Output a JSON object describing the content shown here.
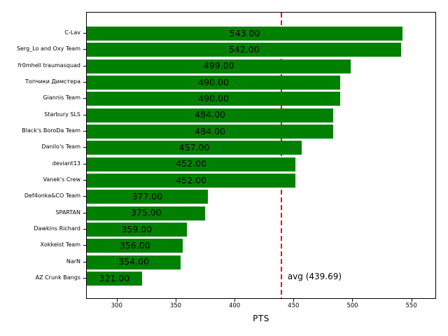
{
  "chart_data": {
    "type": "bar",
    "orientation": "horizontal",
    "title": "",
    "xlabel": "PTS",
    "ylabel": "",
    "categories": [
      "C-Lav",
      "Serg_Lo and Oxy Team",
      "fr0mhell traumasquad",
      "Топчики Димстера",
      "Giannis Team",
      "Starbury SLS",
      "Black's BoroDa Team",
      "Danilo's Team",
      "deviant13",
      "Vanek's Crew",
      "Def4onka&CO Team",
      "SPARTAN",
      "Dawkins Richard",
      "Xokkeist Team",
      "NarN",
      "AZ Crunk Bangs"
    ],
    "values": [
      543,
      542,
      499,
      490,
      490,
      484,
      484,
      457,
      452,
      452,
      377,
      375,
      359,
      356,
      354,
      321
    ],
    "value_labels": [
      "543.00",
      "542.00",
      "499.00",
      "490.00",
      "490.00",
      "484.00",
      "484.00",
      "457.00",
      "452.00",
      "452.00",
      "377.00",
      "375.00",
      "359.00",
      "356.00",
      "354.00",
      "321.00"
    ],
    "x_ticks": [
      300,
      350,
      400,
      450,
      500,
      550
    ],
    "xlim": [
      274,
      571
    ],
    "grid": false,
    "legend": "none",
    "bar_label_position": "center",
    "avg_line": {
      "value": 439.69,
      "label": "avg (439.69)",
      "style": "dashed"
    },
    "colors": {
      "bar": "#008000",
      "avg_line": "#ff0000",
      "text": "#000000",
      "background": "#ffffff"
    }
  }
}
